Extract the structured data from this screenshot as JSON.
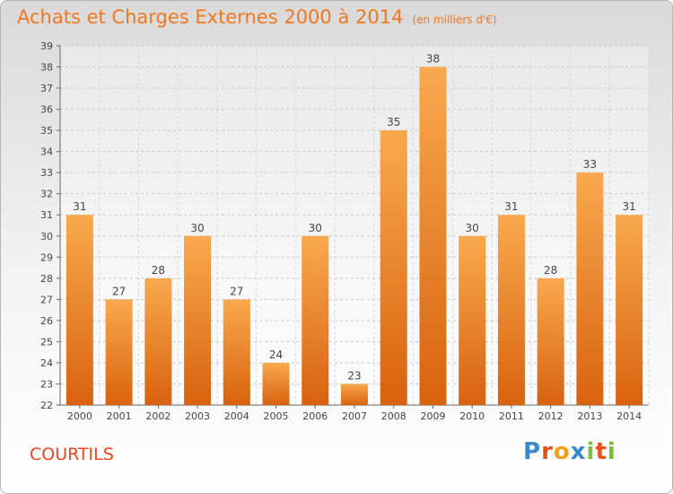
{
  "chart_data": {
    "type": "bar",
    "title": "Achats et Charges Externes 2000 à 2014",
    "unit_note": "(en milliers d'€)",
    "categories": [
      "2000",
      "2001",
      "2002",
      "2003",
      "2004",
      "2005",
      "2006",
      "2007",
      "2008",
      "2009",
      "2010",
      "2011",
      "2012",
      "2013",
      "2014"
    ],
    "values": [
      31,
      27,
      28,
      30,
      27,
      24,
      30,
      23,
      35,
      38,
      30,
      31,
      28,
      33,
      31
    ],
    "ylim": [
      22,
      39
    ],
    "yticks": [
      22,
      23,
      24,
      25,
      26,
      27,
      28,
      29,
      30,
      31,
      32,
      33,
      34,
      35,
      36,
      37,
      38,
      39
    ],
    "grid": true,
    "data_labels": true,
    "bar_color_top": "#f9a94d",
    "bar_color_bottom": "#d8620f"
  },
  "footer": {
    "town": "COURTILS",
    "logo_text": "Proxiti"
  },
  "colors": {
    "title": "#f07820",
    "town": "#ee4422"
  }
}
